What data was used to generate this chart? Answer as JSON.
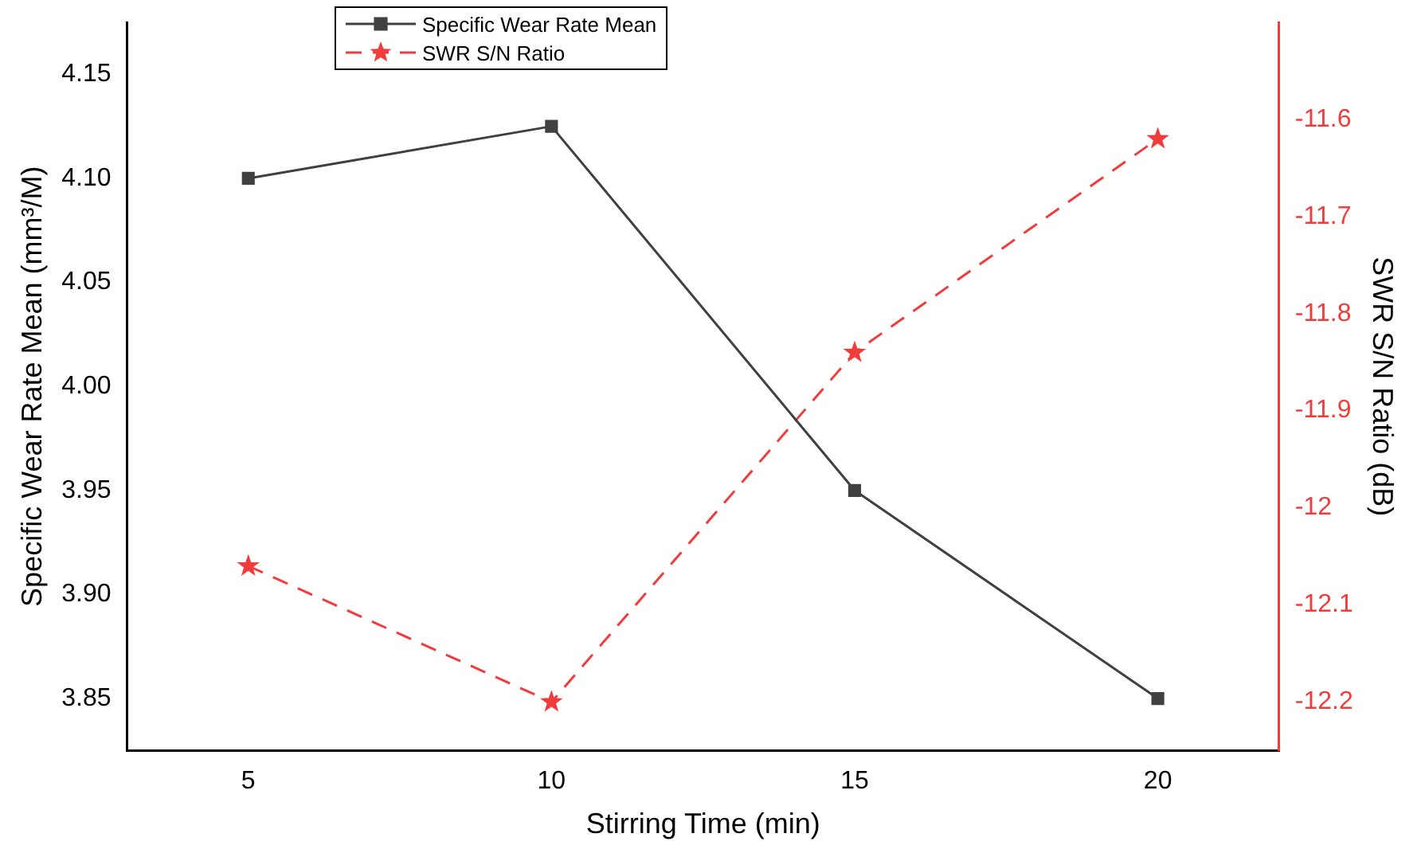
{
  "chart_data": {
    "type": "line",
    "xlabel": "Stirring Time (min)",
    "ylabel": "Specific Wear Rate Mean (mm³/M)",
    "y2label": "SWR S/N Ratio (dB)",
    "x": [
      5,
      10,
      15,
      20
    ],
    "series": [
      {
        "name": "Specific Wear Rate Mean",
        "color": "#404040",
        "values": [
          4.1,
          4.125,
          3.95,
          3.85
        ],
        "marker": "square",
        "line_style": "solid"
      },
      {
        "name": "SWR S/N Ratio",
        "color": "#f03c3c",
        "values": [
          -12.06,
          -12.2,
          -11.84,
          -11.62
        ],
        "marker": "star",
        "line_style": "dashed",
        "axis": "y2"
      }
    ],
    "xlim": [
      3,
      22
    ],
    "xticks": [
      5,
      10,
      15,
      20
    ],
    "ylim": [
      3.825,
      4.175
    ],
    "yticks": [
      {
        "value": 3.85,
        "label": "3.85"
      },
      {
        "value": 3.9,
        "label": "3.90"
      },
      {
        "value": 3.95,
        "label": "3.95"
      },
      {
        "value": 4,
        "label": "4.00"
      },
      {
        "value": 4.05,
        "label": "4.05"
      },
      {
        "value": 4.1,
        "label": "4.10"
      },
      {
        "value": 4.15,
        "label": "4.15"
      }
    ],
    "y2lim": [
      -12.25,
      -11.5
    ],
    "y2ticks": [
      -12.2,
      -12.1,
      -12,
      -11.9,
      -11.8,
      -11.7,
      -11.6
    ],
    "grid": false,
    "legend": "top left"
  }
}
